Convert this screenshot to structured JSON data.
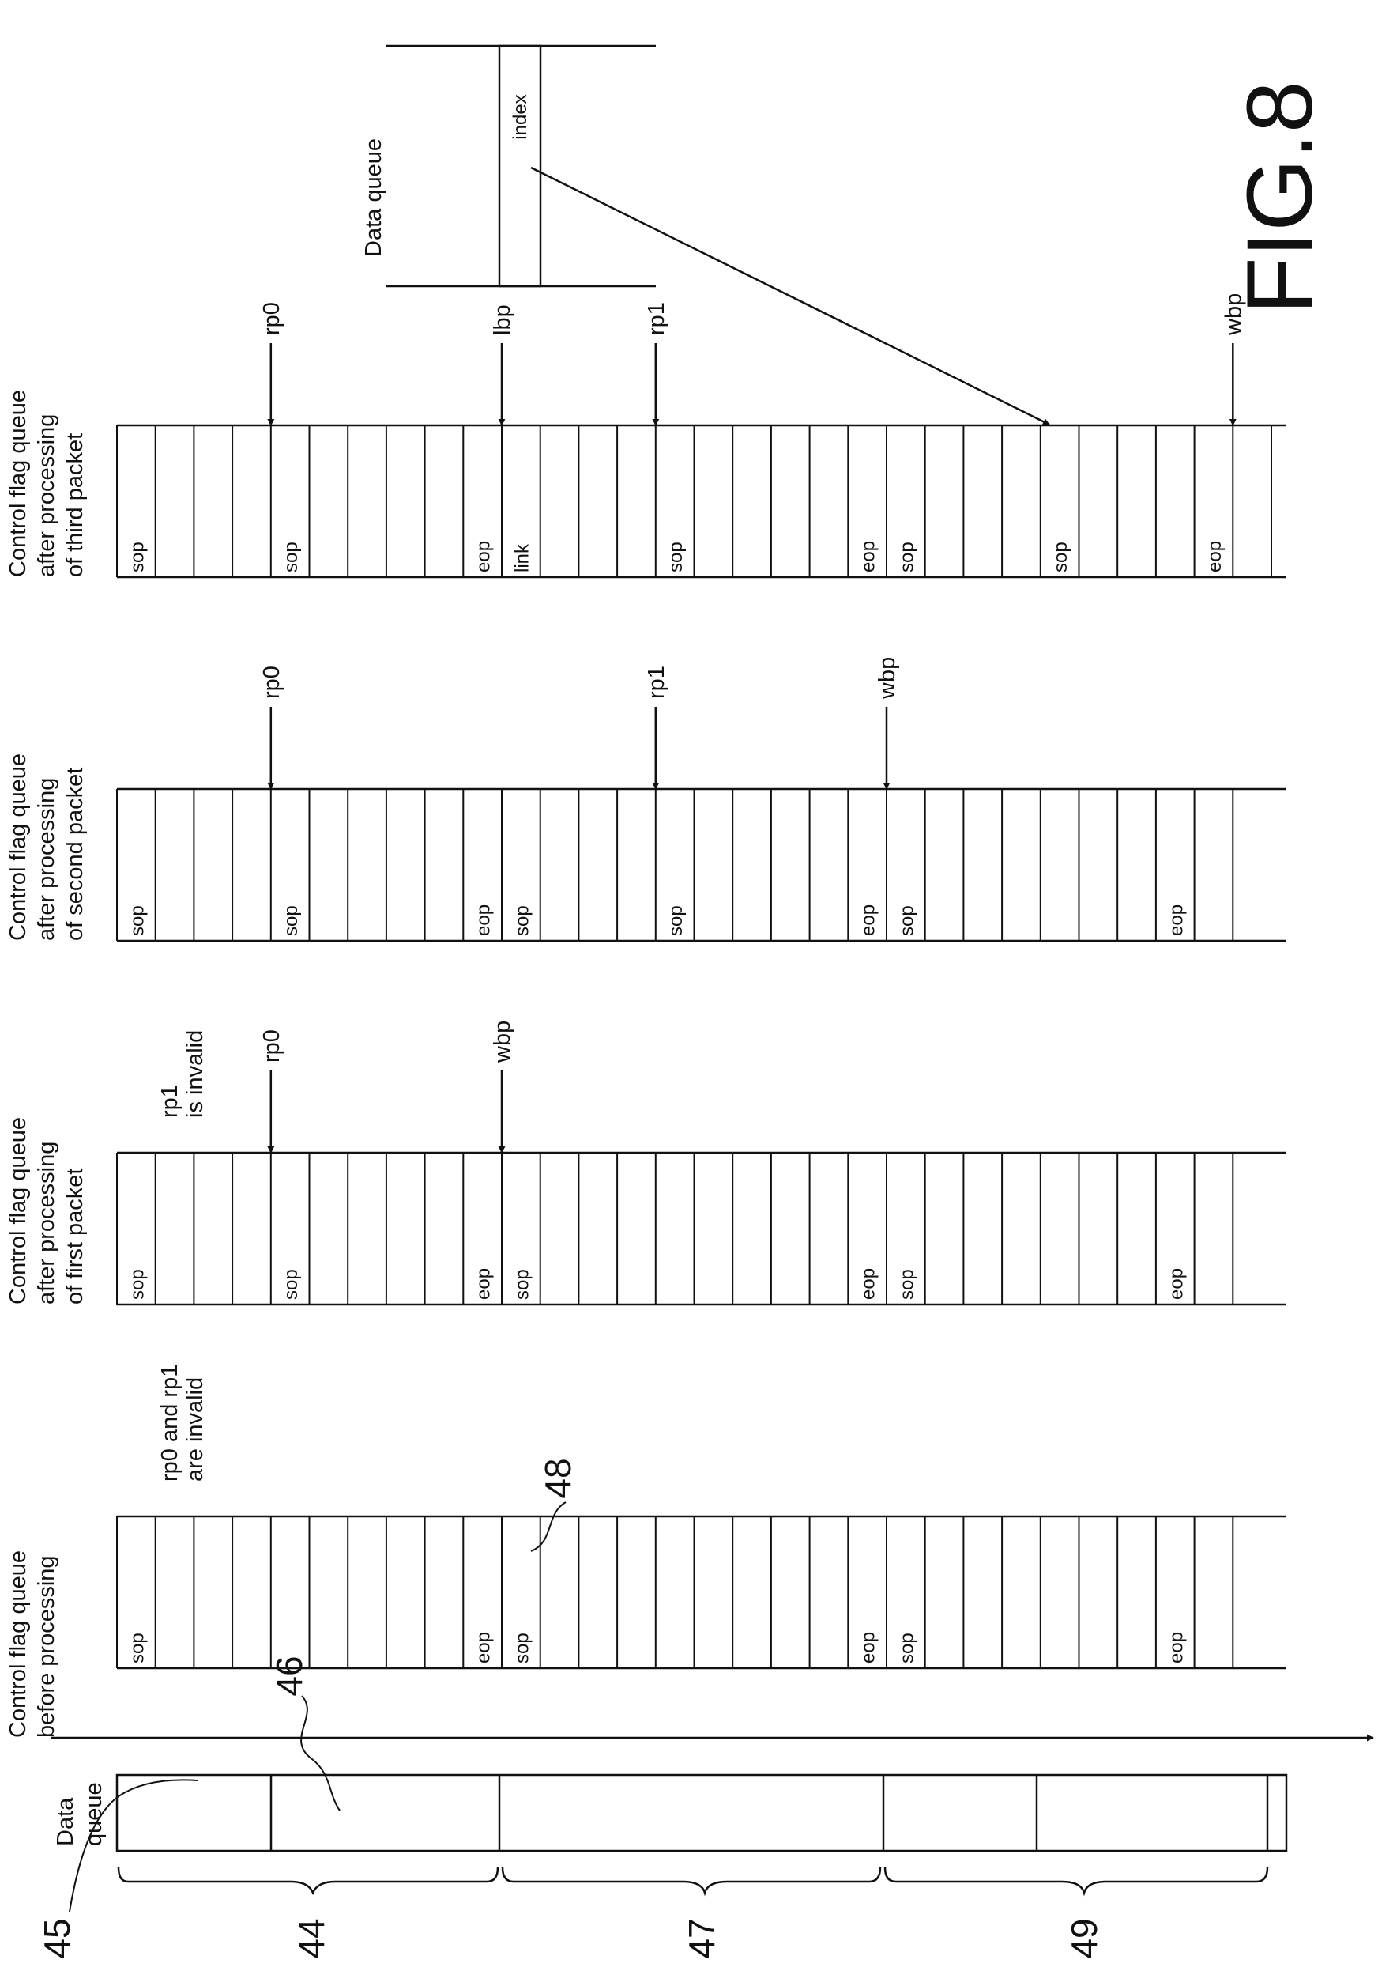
{
  "figure": {
    "title": "FIG.8",
    "data_queue_label": [
      "Data",
      "queue"
    ],
    "index_data_queue": {
      "title": "Data queue",
      "field": "index"
    }
  },
  "reference_numerals": {
    "r45": "45",
    "r44": "44",
    "r46": "46",
    "r47": "47",
    "r48": "48",
    "r49": "49"
  },
  "queues": [
    {
      "title": [
        "Control flag queue",
        "before processing"
      ],
      "note": [
        "rp0 and rp1",
        "are invalid"
      ],
      "cells": [
        "sop",
        "",
        "",
        "",
        "",
        "",
        "",
        "",
        "",
        "eop",
        "sop",
        "",
        "",
        "",
        "",
        "",
        "",
        "",
        "",
        "eop",
        "sop",
        "",
        "",
        "",
        "",
        "",
        "",
        "eop",
        ""
      ],
      "pointers": []
    },
    {
      "title": [
        "Control flag queue",
        "after processing",
        "of first packet"
      ],
      "note": [
        "rp1",
        "is invalid"
      ],
      "cells": [
        "sop",
        "",
        "",
        "",
        "sop",
        "",
        "",
        "",
        "",
        "eop",
        "sop",
        "",
        "",
        "",
        "",
        "",
        "",
        "",
        "",
        "eop",
        "sop",
        "",
        "",
        "",
        "",
        "",
        "",
        "eop",
        ""
      ],
      "pointers": [
        {
          "label": "rp0",
          "cell": 4
        },
        {
          "label": "wbp",
          "cell": 10
        }
      ]
    },
    {
      "title": [
        "Control flag queue",
        "after processing",
        "of second packet"
      ],
      "note": [],
      "cells": [
        "sop",
        "",
        "",
        "",
        "sop",
        "",
        "",
        "",
        "",
        "eop",
        "sop",
        "",
        "",
        "",
        "sop",
        "",
        "",
        "",
        "",
        "eop",
        "sop",
        "",
        "",
        "",
        "",
        "",
        "",
        "eop",
        ""
      ],
      "pointers": [
        {
          "label": "rp0",
          "cell": 4
        },
        {
          "label": "rp1",
          "cell": 14
        },
        {
          "label": "wbp",
          "cell": 20
        }
      ]
    },
    {
      "title": [
        "Control flag queue",
        "after processing",
        "of third packet"
      ],
      "note": [],
      "cells": [
        "sop",
        "",
        "",
        "",
        "sop",
        "",
        "",
        "",
        "",
        "eop",
        "link",
        "",
        "",
        "",
        "sop",
        "",
        "",
        "",
        "",
        "eop",
        "sop",
        "",
        "",
        "",
        "sop",
        "",
        "",
        "",
        "eop",
        ""
      ],
      "pointers": [
        {
          "label": "rp0",
          "cell": 4
        },
        {
          "label": "lbp",
          "cell": 10
        },
        {
          "label": "rp1",
          "cell": 14
        },
        {
          "label": "wbp",
          "cell": 29
        }
      ]
    }
  ]
}
